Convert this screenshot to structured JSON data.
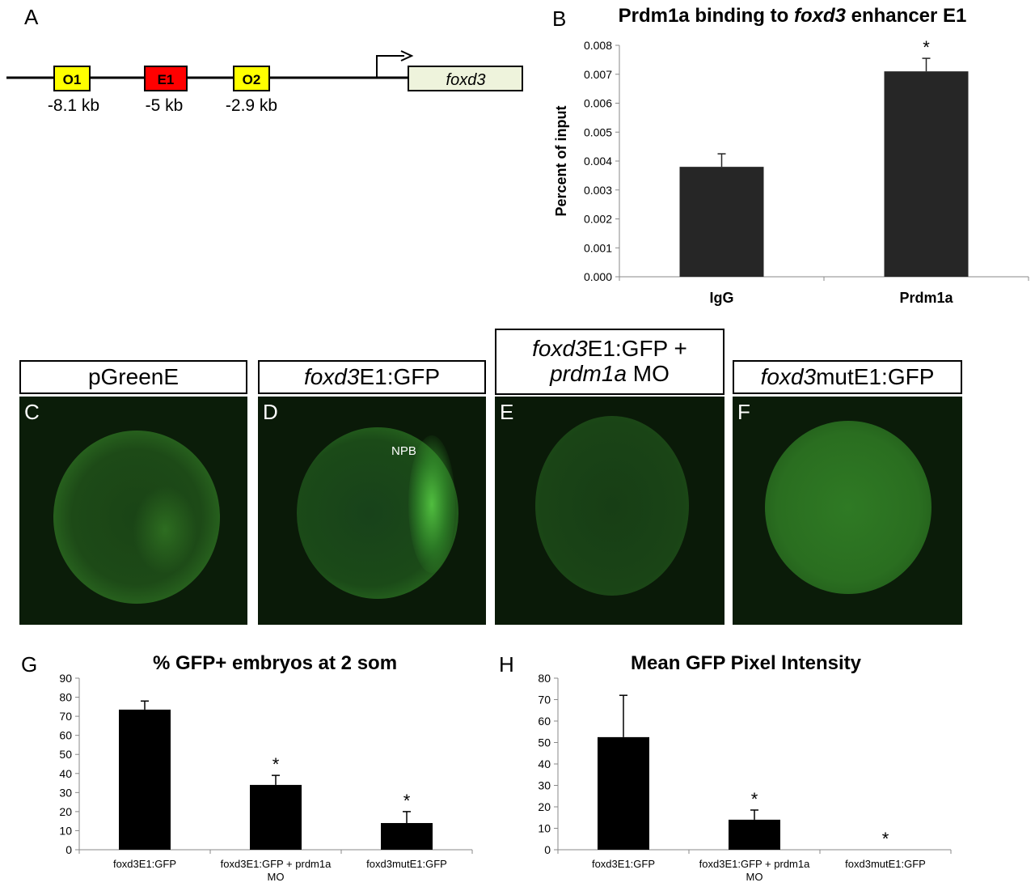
{
  "panel_a": {
    "letter": "A",
    "elements": [
      {
        "label": "O1",
        "position": "-8.1 kb",
        "color": "#ffff00"
      },
      {
        "label": "E1",
        "position": "-5 kb",
        "color": "#ff0000"
      },
      {
        "label": "O2",
        "position": "-2.9 kb",
        "color": "#ffff00"
      }
    ],
    "gene": "foxd3",
    "gene_color": "#eef3dc"
  },
  "panel_b": {
    "letter": "B",
    "title_prefix": "Prdm1a binding to ",
    "title_italic": "foxd3",
    "title_suffix": " enhancer E1",
    "chart_data": {
      "type": "bar",
      "categories": [
        "IgG",
        "Prdm1a"
      ],
      "values": [
        0.0038,
        0.0071
      ],
      "errors": [
        0.00045,
        0.00045
      ],
      "significance": [
        "",
        "*"
      ],
      "ylabel": "Percent of input",
      "ylim": [
        0,
        0.008
      ],
      "yticks": [
        "0.000",
        "0.001",
        "0.002",
        "0.003",
        "0.004",
        "0.005",
        "0.006",
        "0.007",
        "0.008"
      ],
      "bar_color": "#262626"
    }
  },
  "image_panels": [
    {
      "letter": "C",
      "label_line1": "pGreenE",
      "label_line2": "",
      "annotation": ""
    },
    {
      "letter": "D",
      "label_italic": "foxd3",
      "label_rest": "E1:GFP",
      "annotation": "NPB"
    },
    {
      "letter": "E",
      "label_line1_italic": "foxd3",
      "label_line1_rest": "E1:GFP +",
      "label_line2_italic": "prdm1a",
      "label_line2_rest": " MO",
      "annotation": ""
    },
    {
      "letter": "F",
      "label_italic": "foxd3",
      "label_rest": "mutE1:GFP",
      "annotation": ""
    }
  ],
  "panel_g": {
    "letter": "G",
    "title": "% GFP+ embryos at 2 som",
    "chart_data": {
      "type": "bar",
      "categories": [
        "foxd3E1:GFP",
        "foxd3E1:GFP + prdm1a MO",
        "foxd3mutE1:GFP"
      ],
      "category_lines": [
        [
          "foxd3E1:GFP"
        ],
        [
          "foxd3E1:GFP + prdm1a",
          "MO"
        ],
        [
          "foxd3mutE1:GFP"
        ]
      ],
      "values": [
        73.5,
        34,
        14
      ],
      "errors": [
        4.5,
        5,
        6
      ],
      "significance": [
        "",
        "*",
        "*"
      ],
      "ylim": [
        0,
        90
      ],
      "yticks": [
        "0",
        "10",
        "20",
        "30",
        "40",
        "50",
        "60",
        "70",
        "80",
        "90"
      ],
      "bar_color": "#000000"
    }
  },
  "panel_h": {
    "letter": "H",
    "title": "Mean GFP Pixel Intensity",
    "chart_data": {
      "type": "bar",
      "categories": [
        "foxd3E1:GFP",
        "foxd3E1:GFP + prdm1a MO",
        "foxd3mutE1:GFP"
      ],
      "category_lines": [
        [
          "foxd3E1:GFP"
        ],
        [
          "foxd3E1:GFP + prdm1a",
          "MO"
        ],
        [
          "foxd3mutE1:GFP"
        ]
      ],
      "values": [
        52.5,
        14,
        0
      ],
      "errors": [
        19.5,
        4.5,
        0
      ],
      "significance": [
        "",
        "*",
        "*"
      ],
      "ylim": [
        0,
        80
      ],
      "yticks": [
        "0",
        "10",
        "20",
        "30",
        "40",
        "50",
        "60",
        "70",
        "80"
      ],
      "bar_color": "#000000"
    }
  }
}
